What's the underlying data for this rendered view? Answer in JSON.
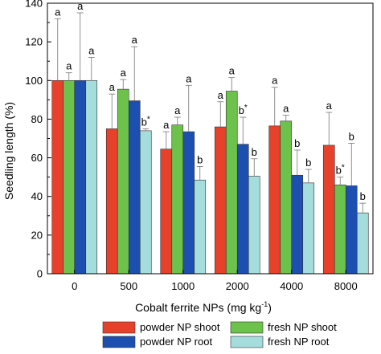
{
  "chart_data": {
    "type": "bar",
    "xlabel": "Cobalt ferrite NPs (mg kg",
    "xlabel_sup": "-1",
    "xlabel_close": ")",
    "ylabel": "Seedling length (%)",
    "ylim": [
      0,
      140
    ],
    "yticks": [
      "0",
      "20",
      "40",
      "60",
      "80",
      "100",
      "120",
      "140"
    ],
    "categories": [
      "0",
      "500",
      "1000",
      "2000",
      "4000",
      "8000"
    ],
    "series": [
      {
        "name": "powder NP shoot",
        "color": "#e8412b",
        "values": [
          100,
          75,
          64.5,
          76,
          76.5,
          66.5
        ],
        "errors": [
          32,
          18,
          9,
          13,
          20,
          17
        ],
        "labels": [
          "a",
          "a",
          "a",
          "a",
          "a",
          "a"
        ]
      },
      {
        "name": "fresh NP shoot",
        "color": "#6dc24b",
        "values": [
          100,
          95.5,
          77,
          94.5,
          79,
          46
        ],
        "errors": [
          4,
          5,
          4,
          7,
          3,
          4
        ],
        "labels": [
          "a",
          "a",
          "a",
          "a",
          "a",
          "b*"
        ]
      },
      {
        "name": "powder NP root",
        "color": "#1c4fb0",
        "values": [
          100,
          89.5,
          73.5,
          67,
          51,
          45.5
        ],
        "errors": [
          35,
          28,
          24,
          14,
          13,
          22
        ],
        "labels": [
          "a",
          "a",
          "a",
          "b*",
          "b",
          "b"
        ]
      },
      {
        "name": "fresh NP root",
        "color": "#a5dcdc",
        "values": [
          100,
          74,
          48.5,
          50.5,
          47,
          31.5
        ],
        "errors": [
          12,
          1,
          7,
          9,
          7,
          5
        ],
        "labels": [
          "a",
          "b*",
          "b",
          "b",
          "b",
          "b"
        ]
      }
    ],
    "legend_position": "bottom"
  }
}
